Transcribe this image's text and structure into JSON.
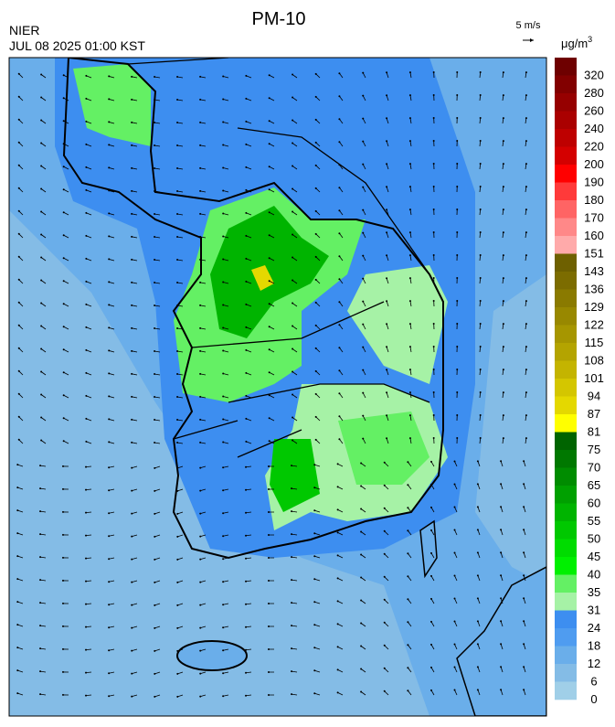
{
  "header": {
    "title": "PM-10",
    "agency": "NIER",
    "datetime": "JUL 08 2025 01:00 KST",
    "wind_scale": "5 m/s",
    "unit": "μg/m",
    "unit_power": "3"
  },
  "colorbar": {
    "labels": [
      "320",
      "280",
      "260",
      "240",
      "220",
      "200",
      "190",
      "180",
      "170",
      "160",
      "151",
      "143",
      "136",
      "129",
      "122",
      "115",
      "108",
      "101",
      "94",
      "87",
      "81",
      "75",
      "70",
      "65",
      "60",
      "55",
      "50",
      "45",
      "40",
      "35",
      "31",
      "24",
      "18",
      "12",
      "6",
      "0"
    ],
    "colors": [
      "#6e0000",
      "#820000",
      "#960000",
      "#aa0000",
      "#be0000",
      "#d40000",
      "#ff0000",
      "#ff3a3a",
      "#ff6464",
      "#ff8888",
      "#ffaaaa",
      "#6e6000",
      "#7c6c00",
      "#8a7a00",
      "#988800",
      "#a69600",
      "#b4a400",
      "#c4b400",
      "#d4c600",
      "#e4d800",
      "#ffff00",
      "#006400",
      "#007800",
      "#008c00",
      "#00a000",
      "#00b400",
      "#00c800",
      "#00dc00",
      "#00f000",
      "#64f064",
      "#a6f2a6",
      "#3d8ef0",
      "#4f9cf0",
      "#6aaeea",
      "#84bce6",
      "#a0cfe8"
    ]
  }
}
